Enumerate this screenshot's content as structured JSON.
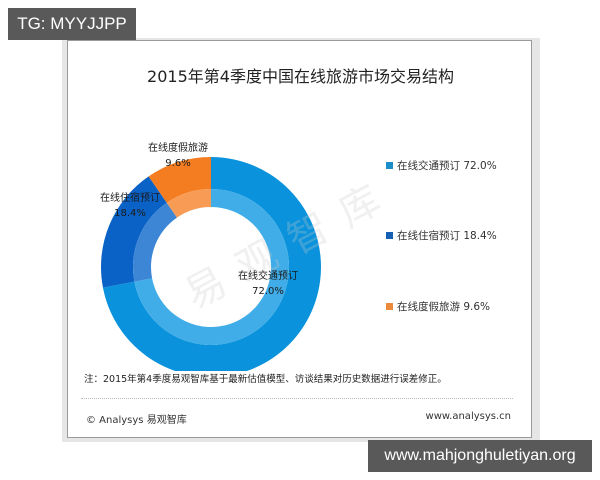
{
  "overlay": {
    "top_badge": "TG: MYYJJPP",
    "bottom_badge": "www.mahjonghuletiyan.org"
  },
  "chart_data": {
    "type": "pie",
    "subtype": "donut",
    "title": "2015年第4季度中国在线旅游市场交易结构",
    "categories": [
      "在线交通预订",
      "在线住宿预订",
      "在线度假旅游"
    ],
    "values": [
      72.0,
      18.4,
      9.6
    ],
    "unit": "%",
    "colors": [
      "#0a93dc",
      "#0b62c6",
      "#f47d22"
    ],
    "inner_ring_colors": [
      "#41ade8",
      "#3d86d6",
      "#f79b55"
    ],
    "slice_labels": [
      {
        "name": "在线交通预订",
        "value": "72.0%"
      },
      {
        "name": "在线住宿预订",
        "value": "18.4%"
      },
      {
        "name": "在线度假旅游",
        "value": "9.6%"
      }
    ],
    "legend": [
      {
        "label": "在线交通预订 72.0%",
        "color": "#1b8ec9"
      },
      {
        "label": "在线住宿预订 18.4%",
        "color": "#1560b2"
      },
      {
        "label": "在线度假旅游 9.6%",
        "color": "#ec8a3c"
      }
    ],
    "legend_position": "right"
  },
  "note": "注：2015年第4季度易观智库基于最新估值模型、访谈结果对历史数据进行误差修正。",
  "footer": {
    "left": "© Analysys 易观智库",
    "right": "www.analysys.cn"
  },
  "watermark": "易观智库"
}
